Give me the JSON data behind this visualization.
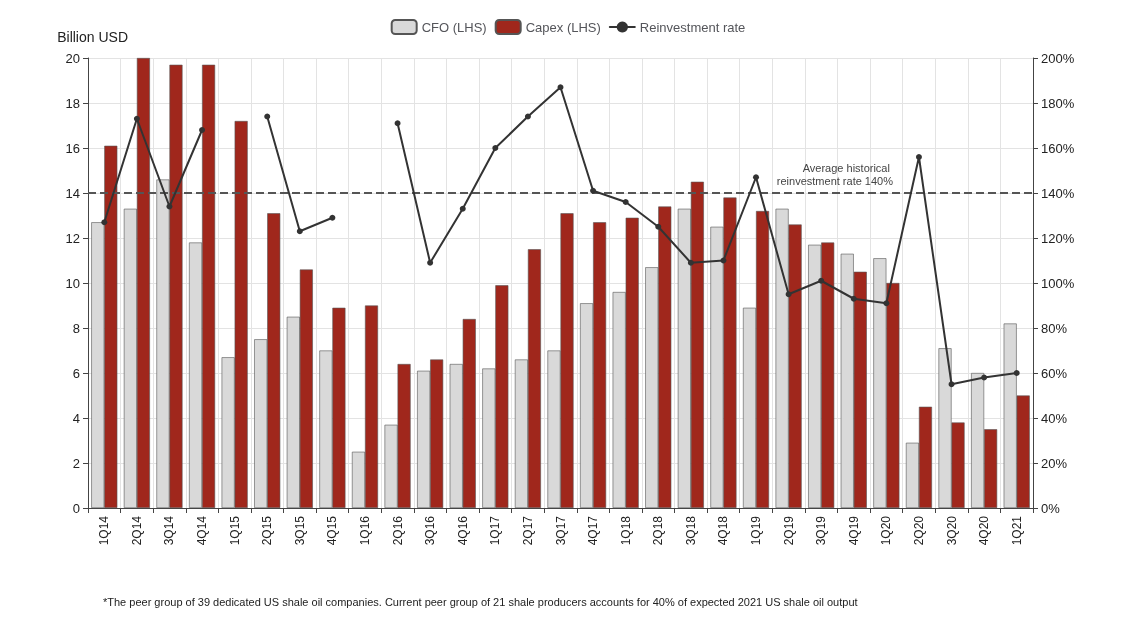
{
  "chart_data": {
    "type": "bar",
    "ylabel": "Billion USD",
    "categories": [
      "1Q14",
      "2Q14",
      "3Q14",
      "4Q14",
      "1Q15",
      "2Q15",
      "3Q15",
      "4Q15",
      "1Q16",
      "2Q16",
      "3Q16",
      "4Q16",
      "1Q17",
      "2Q17",
      "3Q17",
      "4Q17",
      "1Q18",
      "2Q18",
      "3Q18",
      "4Q18",
      "1Q19",
      "2Q19",
      "3Q19",
      "4Q19",
      "1Q20",
      "2Q20",
      "3Q20",
      "4Q20",
      "1Q21"
    ],
    "series": [
      {
        "name": "CFO (LHS)",
        "color": "#d9d9d9",
        "values": [
          12.7,
          13.3,
          14.6,
          11.8,
          6.7,
          7.5,
          8.5,
          7.0,
          2.5,
          3.7,
          6.1,
          6.4,
          6.2,
          6.6,
          7.0,
          9.1,
          9.6,
          10.7,
          13.3,
          12.5,
          8.9,
          13.3,
          11.7,
          11.3,
          11.1,
          2.9,
          7.1,
          6.0,
          8.2
        ]
      },
      {
        "name": "Capex (LHS)",
        "color": "#a0271c",
        "values": [
          16.1,
          20.0,
          19.7,
          19.7,
          17.2,
          13.1,
          10.6,
          8.9,
          9.0,
          6.4,
          6.6,
          8.4,
          9.9,
          11.5,
          13.1,
          12.7,
          12.9,
          13.4,
          14.5,
          13.8,
          13.2,
          12.6,
          11.8,
          10.5,
          10.0,
          4.5,
          3.8,
          3.5,
          5.0
        ]
      },
      {
        "name": "Reinvestment rate",
        "type": "line",
        "axis": "y2",
        "color": "#333333",
        "values": [
          127,
          173,
          134,
          168,
          null,
          174,
          123,
          129,
          null,
          171,
          109,
          133,
          160,
          174,
          187,
          141,
          136,
          125,
          109,
          110,
          147,
          95,
          101,
          93,
          91,
          156,
          55,
          58,
          60
        ]
      }
    ],
    "ylim": [
      0,
      20
    ],
    "yticks": [
      0,
      2,
      4,
      6,
      8,
      10,
      12,
      14,
      16,
      18,
      20
    ],
    "y2lim": [
      0,
      200
    ],
    "y2ticks": [
      {
        "value": 0,
        "label": "0%"
      },
      {
        "value": 20,
        "label": "20%"
      },
      {
        "value": 40,
        "label": "40%"
      },
      {
        "value": 60,
        "label": "60%"
      },
      {
        "value": 80,
        "label": "80%"
      },
      {
        "value": 100,
        "label": "100%"
      },
      {
        "value": 120,
        "label": "120%"
      },
      {
        "value": 140,
        "label": "140%"
      },
      {
        "value": 160,
        "label": "160%"
      },
      {
        "value": 180,
        "label": "180%"
      },
      {
        "value": 200,
        "label": "200%"
      }
    ],
    "ref_lines": [
      {
        "axis": "y2",
        "value": 140,
        "label": "Average historical reinvestment rate 140%",
        "line_style": "dashed",
        "color": "#555555"
      }
    ],
    "annotations": [
      "*The peer group of 39 dedicated US shale oil companies. Current peer group of 21 shale producers accounts for 40% of expected 2021 US shale oil output"
    ],
    "grid": true,
    "legend": "top",
    "marker": "circle",
    "line_style": "solid"
  }
}
